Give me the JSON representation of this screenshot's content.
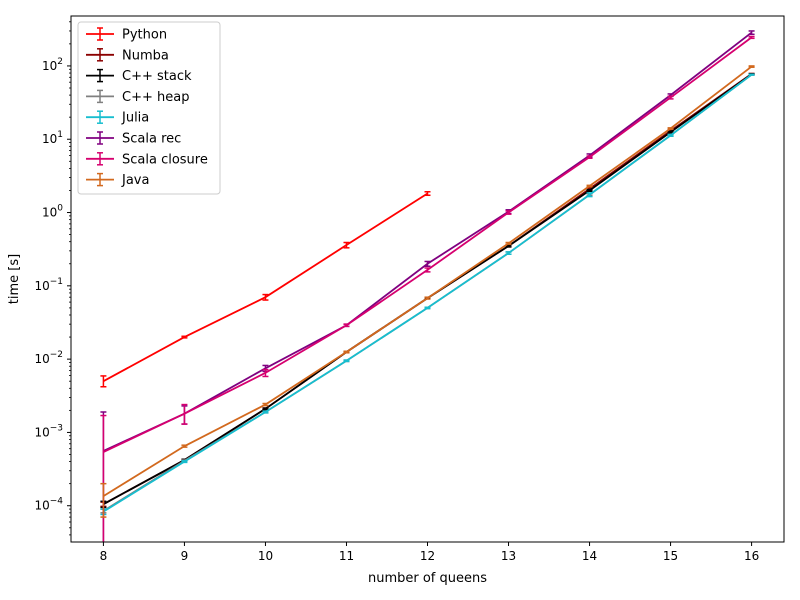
{
  "chart_data": {
    "type": "line",
    "xlabel": "number of queens",
    "ylabel": "time [s]",
    "x_ticks": [
      8,
      9,
      10,
      11,
      12,
      13,
      14,
      15,
      16
    ],
    "y_scale": "log",
    "y_ticks": [
      {
        "value": 0.0001,
        "base": "10",
        "exp": "−4"
      },
      {
        "value": 0.001,
        "base": "10",
        "exp": "−3"
      },
      {
        "value": 0.01,
        "base": "10",
        "exp": "−2"
      },
      {
        "value": 0.1,
        "base": "10",
        "exp": "−1"
      },
      {
        "value": 1,
        "base": "10",
        "exp": "0"
      },
      {
        "value": 10,
        "base": "10",
        "exp": "1"
      },
      {
        "value": 100,
        "base": "10",
        "exp": "2"
      }
    ],
    "xlim": [
      7.6,
      16.4
    ],
    "ylim": [
      3.2e-05,
      480
    ],
    "grid": false,
    "legend": "top-left",
    "series": [
      {
        "name": "Python",
        "color": "#ff0000",
        "points": [
          [
            8,
            0.005,
            0.0042,
            0.0059
          ],
          [
            9,
            0.02,
            0.0195,
            0.0205
          ],
          [
            10,
            0.07,
            0.064,
            0.076
          ],
          [
            11,
            0.36,
            0.33,
            0.39
          ],
          [
            12,
            1.82,
            1.72,
            1.92
          ]
        ]
      },
      {
        "name": "Numba",
        "color": "#8b0000",
        "points": [
          [
            8,
            0.000105,
            9.8e-05,
            0.000112
          ],
          [
            9,
            0.00042,
            0.00041,
            0.00043
          ],
          [
            10,
            0.0021,
            0.00205,
            0.00215
          ],
          [
            11,
            0.0125,
            0.0123,
            0.0127
          ],
          [
            12,
            0.068,
            0.067,
            0.069
          ],
          [
            13,
            0.35,
            0.34,
            0.36
          ],
          [
            14,
            2.1,
            2.05,
            2.15
          ],
          [
            15,
            13,
            12.7,
            13.3
          ],
          [
            16,
            78,
            77,
            79
          ]
        ]
      },
      {
        "name": "C++ stack",
        "color": "#000000",
        "points": [
          [
            8,
            0.000105,
            9.5e-05,
            0.000115
          ],
          [
            9,
            0.00042,
            0.00041,
            0.00043
          ],
          [
            10,
            0.0021,
            0.00205,
            0.00215
          ],
          [
            11,
            0.0125,
            0.0123,
            0.0127
          ],
          [
            12,
            0.068,
            0.067,
            0.069
          ],
          [
            13,
            0.35,
            0.34,
            0.36
          ],
          [
            14,
            2.0,
            1.95,
            2.05
          ],
          [
            15,
            12.5,
            12.2,
            12.8
          ],
          [
            16,
            77,
            76,
            78
          ]
        ]
      },
      {
        "name": "C++ heap",
        "color": "#808080",
        "points": [
          [
            8,
            8.5e-05,
            8e-05,
            9e-05
          ],
          [
            9,
            0.00041,
            0.0004,
            0.00042
          ],
          [
            10,
            0.0019,
            0.00185,
            0.00195
          ],
          [
            11,
            0.0095,
            0.0093,
            0.0097
          ],
          [
            12,
            0.05,
            0.049,
            0.051
          ],
          [
            13,
            0.28,
            0.27,
            0.29
          ],
          [
            14,
            1.75,
            1.7,
            1.8
          ],
          [
            15,
            11.3,
            11.0,
            11.6
          ],
          [
            16,
            76,
            75,
            77
          ]
        ]
      },
      {
        "name": "Julia",
        "color": "#17becf",
        "points": [
          [
            8,
            8.3e-05,
            7.6e-05,
            9e-05
          ],
          [
            9,
            0.0004,
            0.00039,
            0.00041
          ],
          [
            10,
            0.0019,
            0.00185,
            0.00195
          ],
          [
            11,
            0.0095,
            0.0093,
            0.0097
          ],
          [
            12,
            0.05,
            0.049,
            0.051
          ],
          [
            13,
            0.28,
            0.27,
            0.29
          ],
          [
            14,
            1.75,
            1.65,
            1.85
          ],
          [
            15,
            11.3,
            11.0,
            11.6
          ],
          [
            16,
            76,
            75,
            77
          ]
        ]
      },
      {
        "name": "Scala rec",
        "color": "#800080",
        "points": [
          [
            8,
            0.00056,
            3e-05,
            0.0019
          ],
          [
            9,
            0.0018,
            0.0013,
            0.0023
          ],
          [
            10,
            0.0075,
            0.0068,
            0.0082
          ],
          [
            11,
            0.029,
            0.028,
            0.03
          ],
          [
            12,
            0.2,
            0.185,
            0.215
          ],
          [
            13,
            1.03,
            0.97,
            1.09
          ],
          [
            14,
            6.0,
            5.7,
            6.3
          ],
          [
            15,
            40,
            38.5,
            41.5
          ],
          [
            16,
            285,
            270,
            300
          ]
        ]
      },
      {
        "name": "Scala closure",
        "color": "#d6006f",
        "points": [
          [
            8,
            0.00054,
            3e-05,
            0.0017
          ],
          [
            9,
            0.0018,
            0.0013,
            0.0024
          ],
          [
            10,
            0.0065,
            0.0058,
            0.0072
          ],
          [
            11,
            0.029,
            0.028,
            0.03
          ],
          [
            12,
            0.165,
            0.155,
            0.175
          ],
          [
            13,
            1.0,
            0.95,
            1.05
          ],
          [
            14,
            5.7,
            5.5,
            5.9
          ],
          [
            15,
            37,
            35.5,
            38.5
          ],
          [
            16,
            245,
            238,
            252
          ]
        ]
      },
      {
        "name": "Java",
        "color": "#d2691e",
        "points": [
          [
            8,
            0.000135,
            7e-05,
            0.0002
          ],
          [
            9,
            0.00065,
            0.00063,
            0.00067
          ],
          [
            10,
            0.0024,
            0.00232,
            0.00248
          ],
          [
            11,
            0.0125,
            0.0122,
            0.0128
          ],
          [
            12,
            0.068,
            0.066,
            0.07
          ],
          [
            13,
            0.38,
            0.37,
            0.39
          ],
          [
            14,
            2.3,
            2.25,
            2.35
          ],
          [
            15,
            14,
            13.7,
            14.3
          ],
          [
            16,
            98,
            96,
            100
          ]
        ]
      }
    ]
  }
}
